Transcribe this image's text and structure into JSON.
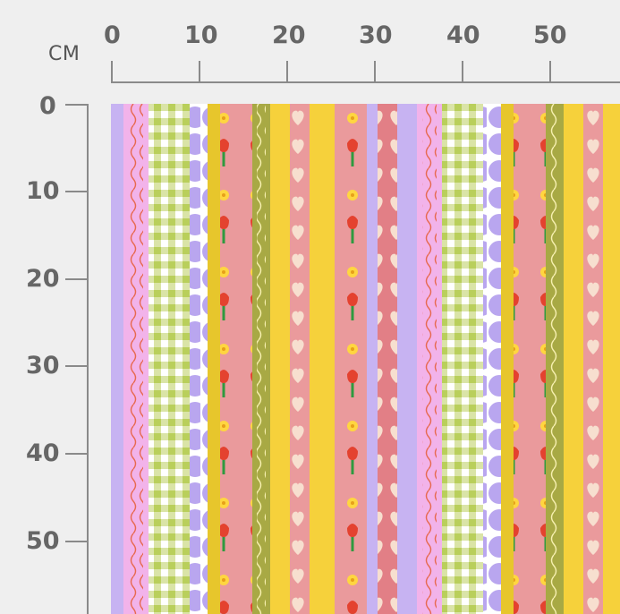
{
  "ruler": {
    "unit_label": "CM",
    "x_ticks": [
      "0",
      "10",
      "20",
      "30",
      "40",
      "50"
    ],
    "y_ticks": [
      "0",
      "10",
      "20",
      "30",
      "40",
      "50"
    ]
  },
  "pattern": {
    "description_colors": {
      "lavender": "#c7b3f2",
      "pink_light": "#f2b3ea",
      "gingham_green": "#c9d97a",
      "gingham_white": "#ffffff",
      "purple_scallop": "#b9a6ef",
      "mustard": "#e7c62c",
      "rose": "#ea9a9c",
      "olive": "#a8a944",
      "yellow": "#f6d13b",
      "dusty_red": "#e27f86",
      "cream_heart": "#f7dfcf",
      "red_flower": "#e4422f",
      "green_stem": "#2f9a3f"
    }
  }
}
